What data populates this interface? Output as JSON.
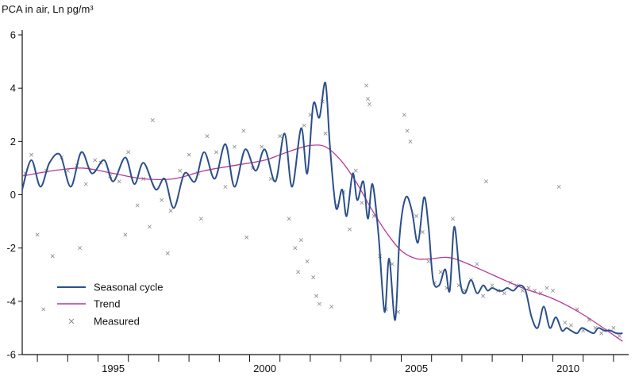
{
  "chart_data": {
    "type": "line",
    "title": "",
    "ylabel": "PCA in air, Ln pg/m³",
    "xlabel": "",
    "xlim": [
      1992.5,
      2012.5
    ],
    "ylim": [
      -6,
      6
    ],
    "y_ticks": [
      6,
      4,
      2,
      0,
      -2,
      -4,
      -6
    ],
    "x_tick_labels": [
      "1995",
      "2000",
      "2005",
      "2010"
    ],
    "x_tick_values": [
      1995,
      2000,
      2005,
      2010
    ],
    "legend_position": "lower-left",
    "series": [
      {
        "name": "Seasonal cycle",
        "color": "#2b4f8a",
        "x": [
          1992.5,
          1992.8,
          1993.1,
          1993.4,
          1993.75,
          1994.1,
          1994.45,
          1994.8,
          1995.2,
          1995.5,
          1995.9,
          1996.2,
          1996.5,
          1996.9,
          1997.2,
          1997.5,
          1997.85,
          1998.2,
          1998.5,
          1998.85,
          1999.2,
          1999.5,
          1999.85,
          2000.2,
          2000.5,
          2000.85,
          2001.15,
          2001.4,
          2001.7,
          2001.9,
          2002.1,
          2002.3,
          2002.5,
          2002.65,
          2002.85,
          2003.05,
          2003.2,
          2003.4,
          2003.55,
          2003.75,
          2003.9,
          2004.05,
          2004.25,
          2004.45,
          2004.6,
          2004.8,
          2004.95,
          2005.15,
          2005.35,
          2005.55,
          2005.75,
          2005.9,
          2006.05,
          2006.25,
          2006.45,
          2006.6,
          2006.75,
          2006.95,
          2007.1,
          2007.3,
          2007.5,
          2007.7,
          2007.85,
          2008.0,
          2008.2,
          2008.35,
          2008.5,
          2008.7,
          2008.9,
          2009.1,
          2009.3,
          2009.5,
          2009.7,
          2009.9,
          2010.1,
          2010.3,
          2010.45,
          2010.6,
          2010.8,
          2010.95,
          2011.15,
          2011.35,
          2011.5,
          2011.7,
          2011.9,
          2012.1,
          2012.3
        ],
        "y": [
          0.2,
          1.3,
          0.3,
          1.2,
          1.5,
          0.3,
          1.6,
          0.8,
          1.3,
          0.5,
          1.4,
          0.4,
          1.2,
          0.2,
          0.6,
          -0.5,
          0.8,
          0.5,
          1.6,
          0.6,
          1.9,
          0.3,
          1.7,
          0.9,
          1.7,
          0.5,
          2.3,
          0.3,
          2.5,
          0.8,
          3.4,
          2.9,
          4.2,
          1.8,
          -0.5,
          0.2,
          -0.8,
          0.8,
          -0.2,
          0.5,
          -0.9,
          0.4,
          -1.5,
          -4.4,
          -2.4,
          -4.7,
          -1.5,
          -0.1,
          -0.6,
          -1.8,
          -0.1,
          -1.2,
          -3.2,
          -3.4,
          -2.8,
          -3.6,
          -1.2,
          -3.3,
          -3.7,
          -3.2,
          -3.7,
          -3.4,
          -3.6,
          -3.5,
          -3.6,
          -3.6,
          -3.5,
          -3.6,
          -3.4,
          -3.6,
          -4.6,
          -5.0,
          -4.2,
          -5.0,
          -4.6,
          -5.1,
          -5.0,
          -5.1,
          -5.2,
          -5.0,
          -5.1,
          -5.2,
          -5.0,
          -5.1,
          -5.1,
          -5.2,
          -5.2
        ]
      },
      {
        "name": "Trend",
        "color": "#b5399a",
        "x": [
          1992.5,
          1993.5,
          1994.5,
          1995.5,
          1996.5,
          1997.5,
          1998.5,
          1999.5,
          2000.5,
          2001.0,
          2001.5,
          2002.0,
          2002.5,
          2003.0,
          2003.5,
          2004.0,
          2004.5,
          2005.0,
          2005.5,
          2006.0,
          2006.5,
          2007.0,
          2008.0,
          2009.0,
          2010.0,
          2011.0,
          2012.3
        ],
        "y": [
          0.7,
          0.9,
          1.0,
          0.8,
          0.6,
          0.6,
          0.9,
          1.1,
          1.3,
          1.5,
          1.7,
          1.85,
          1.8,
          1.3,
          0.5,
          -0.5,
          -1.4,
          -2.1,
          -2.4,
          -2.4,
          -2.35,
          -2.5,
          -3.0,
          -3.5,
          -3.9,
          -4.5,
          -5.5
        ]
      }
    ],
    "measured": {
      "name": "Measured",
      "color": "#8a8a8a",
      "x": [
        1992.6,
        1992.8,
        1993.0,
        1993.3,
        1993.5,
        1993.8,
        1994.0,
        1994.3,
        1994.6,
        1994.9,
        1995.1,
        1995.4,
        1995.7,
        1996.0,
        1996.3,
        1996.5,
        1996.8,
        1997.1,
        1997.4,
        1997.7,
        1998.0,
        1998.3,
        1998.6,
        1998.9,
        1999.2,
        1999.5,
        1999.8,
        2000.1,
        2000.4,
        2000.7,
        2001.0,
        2001.3,
        2001.5,
        2001.7,
        2001.8,
        2002.0,
        2002.2,
        2002.4,
        2002.5,
        2002.7,
        2002.9,
        2003.1,
        2003.3,
        2003.5,
        2003.7,
        2003.85,
        2003.9,
        2003.95,
        2004.1,
        2004.3,
        2004.5,
        2004.7,
        2004.9,
        2005.1,
        2005.2,
        2005.3,
        2005.5,
        2005.7,
        2005.9,
        2006.1,
        2006.3,
        2006.5,
        2006.7,
        2006.9,
        2007.1,
        2007.3,
        2007.5,
        2007.7,
        2007.8,
        2008.0,
        2008.2,
        2008.4,
        2008.6,
        2008.8,
        2009.0,
        2009.2,
        2009.4,
        2009.6,
        2009.8,
        2010.0,
        2010.2,
        2010.4,
        2010.6,
        2010.8,
        2011.0,
        2011.2,
        2011.4,
        2011.6,
        2011.8,
        2012.0,
        2012.2,
        1993.2,
        1994.4,
        1995.9,
        1996.7,
        1997.3,
        1998.4,
        1999.9,
        2001.6,
        2001.9,
        2002.1,
        2002.3
      ],
      "y": [
        0.8,
        1.5,
        -1.5,
        0.9,
        -2.3,
        1.4,
        0.9,
        1.1,
        0.4,
        1.3,
        1.2,
        0.7,
        0.5,
        1.6,
        -0.4,
        0.6,
        2.8,
        -0.2,
        -0.6,
        0.9,
        1.5,
        0.8,
        2.2,
        1.6,
        0.3,
        1.8,
        2.4,
        1.0,
        1.8,
        0.6,
        2.2,
        -0.9,
        -2.0,
        -1.7,
        2.6,
        3.0,
        -3.8,
        3.5,
        2.3,
        -4.2,
        -0.4,
        0.1,
        -1.3,
        0.9,
        -0.3,
        4.1,
        3.6,
        3.4,
        -0.8,
        -2.3,
        -4.3,
        -2.6,
        -4.4,
        3.0,
        2.4,
        2.0,
        -0.8,
        -1.4,
        -2.5,
        -3.3,
        -2.9,
        -3.5,
        -0.9,
        -3.4,
        -3.6,
        -3.2,
        -2.6,
        -3.8,
        0.5,
        -3.4,
        -3.6,
        -3.7,
        -3.3,
        -3.4,
        -3.6,
        -3.5,
        -3.6,
        -3.7,
        -3.5,
        -3.6,
        0.3,
        -4.8,
        -4.9,
        -4.3,
        -5.1,
        -4.7,
        -5.0,
        -5.2,
        -5.1,
        -5.0,
        -5.3,
        -4.3,
        -2.0,
        -1.5,
        -1.2,
        -2.2,
        -0.9,
        -1.6,
        -2.9,
        -2.5,
        -3.1,
        -4.1
      ]
    }
  }
}
